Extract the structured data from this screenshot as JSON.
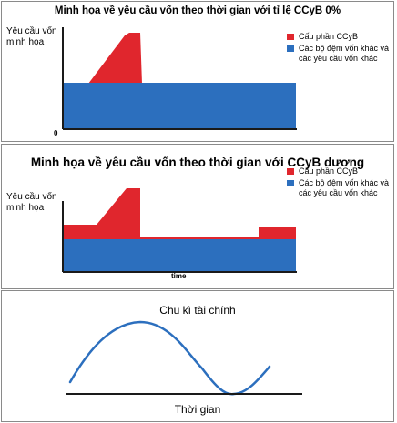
{
  "colors": {
    "ccyb": "#e0262d",
    "other": "#2c6fbe",
    "axis": "#1a1a1a",
    "curve": "#2c6fbe"
  },
  "panel1": {
    "title": "Minh họa về yêu cầu vốn theo thời gian với tỉ lệ CCyB 0%",
    "ylabel": "Yêu cầu vốn minh họa",
    "origin_label": "0",
    "legend": [
      {
        "color": "red",
        "label": "Cấu phần CCyB"
      },
      {
        "color": "blue",
        "label": "Các bộ đệm vốn khác và các yêu cầu vốn khác"
      }
    ]
  },
  "panel2": {
    "title": "Minh họa về yêu cầu vốn theo thời gian với CCyB dương",
    "ylabel": "Yêu cầu vốn minh họa",
    "xlabel": "time",
    "legend": [
      {
        "color": "red",
        "label": "Cấu phần CCyB"
      },
      {
        "color": "blue",
        "label": "Các bộ đệm vốn khác và các yêu cầu vốn khác"
      }
    ]
  },
  "panel3": {
    "title": "Chu kì tài chính",
    "xlabel": "Thời gian"
  }
}
